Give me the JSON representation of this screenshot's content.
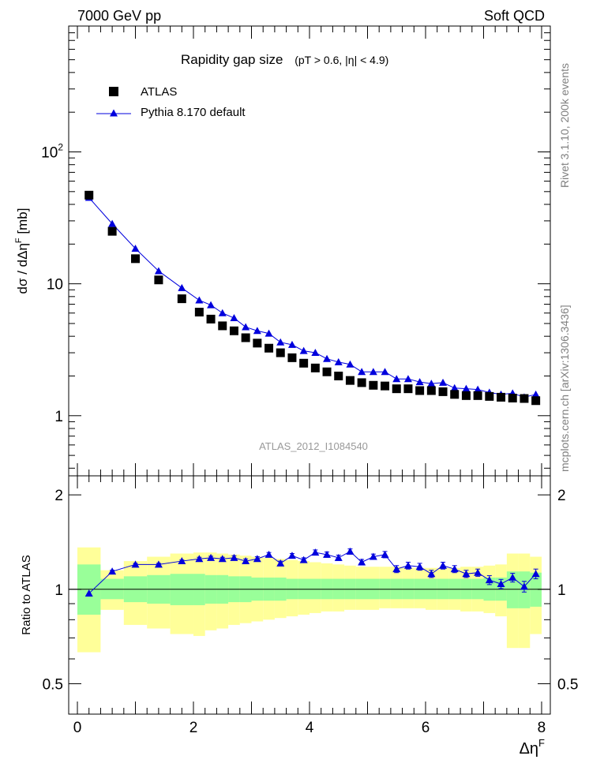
{
  "header": {
    "energy_label": "7000 GeV pp",
    "category_label": "Soft QCD"
  },
  "side_labels": {
    "rivet": "Rivet 3.1.10,  200k events",
    "mcplots": "mcplots.cern.ch [arXiv:1306.3436]"
  },
  "chart_data": [
    {
      "type": "scatter",
      "scale": "log",
      "title": "Rapidity gap size",
      "subtitle": "(pT > 0.6, |η| < 4.9)",
      "ylabel": "dσ / dΔη^F [mb]",
      "xlabel": "Δη^F",
      "xlim": [
        -0.15,
        8.15
      ],
      "ylim": [
        0.35,
        900
      ],
      "yticks": [
        {
          "value": 100,
          "label": "10",
          "sup": "2"
        },
        {
          "value": 10,
          "label": "10",
          "sup": ""
        },
        {
          "value": 1,
          "label": "1",
          "sup": ""
        }
      ],
      "analysis_label": "ATLAS_2012_I1084540",
      "legend": [
        "ATLAS",
        "Pythia 8.170 default"
      ],
      "x": [
        0.2,
        0.6,
        1.0,
        1.4,
        1.8,
        2.1,
        2.3,
        2.5,
        2.7,
        2.9,
        3.1,
        3.3,
        3.5,
        3.7,
        3.9,
        4.1,
        4.3,
        4.5,
        4.7,
        4.9,
        5.1,
        5.3,
        5.5,
        5.7,
        5.9,
        6.1,
        6.3,
        6.5,
        6.7,
        6.9,
        7.1,
        7.3,
        7.5,
        7.7,
        7.9
      ],
      "series": [
        {
          "name": "ATLAS",
          "values": [
            47,
            25,
            15.5,
            10.7,
            7.7,
            6.1,
            5.4,
            4.8,
            4.4,
            3.9,
            3.55,
            3.25,
            3.0,
            2.75,
            2.5,
            2.3,
            2.15,
            2.0,
            1.85,
            1.78,
            1.7,
            1.68,
            1.6,
            1.6,
            1.55,
            1.55,
            1.52,
            1.45,
            1.42,
            1.42,
            1.4,
            1.38,
            1.36,
            1.35,
            1.3
          ]
        },
        {
          "name": "Pythia 8.170 default",
          "values": [
            45,
            28.5,
            18.5,
            12.5,
            9.3,
            7.5,
            6.9,
            6.0,
            5.5,
            4.7,
            4.4,
            4.2,
            3.6,
            3.45,
            3.1,
            3.0,
            2.7,
            2.55,
            2.45,
            2.15,
            2.15,
            2.15,
            1.9,
            1.9,
            1.8,
            1.75,
            1.78,
            1.62,
            1.6,
            1.58,
            1.5,
            1.45,
            1.48,
            1.38,
            1.45
          ]
        }
      ]
    },
    {
      "type": "line",
      "ylabel": "Ratio to ATLAS",
      "xlabel": "Δη^F",
      "xlim": [
        -0.15,
        8.15
      ],
      "ylim": [
        0.4,
        2.3
      ],
      "yticks": [
        0.5,
        1,
        2
      ],
      "ytick_labels": [
        "0.5",
        "1",
        "2"
      ],
      "xticks": [
        0,
        2,
        4,
        6,
        8
      ],
      "xtick_labels": [
        "0",
        "2",
        "4",
        "6",
        "8"
      ],
      "bin_edges": [
        0,
        0.4,
        0.8,
        1.2,
        1.6,
        2.0,
        2.2,
        2.4,
        2.6,
        2.8,
        3.0,
        3.2,
        3.4,
        3.6,
        3.8,
        4.0,
        4.2,
        4.4,
        4.6,
        4.8,
        5.0,
        5.2,
        5.4,
        5.6,
        5.8,
        6.0,
        6.2,
        6.4,
        6.6,
        6.8,
        7.0,
        7.2,
        7.4,
        7.6,
        7.8,
        8.0
      ],
      "band_outer": {
        "name": "total uncertainty",
        "color": "#ffff99",
        "lo": [
          0.63,
          0.86,
          0.77,
          0.75,
          0.72,
          0.71,
          0.74,
          0.75,
          0.77,
          0.78,
          0.79,
          0.8,
          0.81,
          0.82,
          0.83,
          0.84,
          0.85,
          0.85,
          0.86,
          0.86,
          0.86,
          0.87,
          0.87,
          0.87,
          0.87,
          0.86,
          0.86,
          0.86,
          0.85,
          0.85,
          0.84,
          0.82,
          0.65,
          0.65,
          0.72
        ],
        "hi": [
          1.36,
          1.15,
          1.23,
          1.27,
          1.3,
          1.31,
          1.31,
          1.3,
          1.29,
          1.28,
          1.27,
          1.26,
          1.25,
          1.24,
          1.23,
          1.22,
          1.21,
          1.2,
          1.19,
          1.18,
          1.18,
          1.18,
          1.18,
          1.17,
          1.17,
          1.17,
          1.17,
          1.17,
          1.18,
          1.18,
          1.19,
          1.2,
          1.3,
          1.3,
          1.27
        ]
      },
      "band_inner": {
        "name": "statistical uncertainty",
        "color": "#99ff99",
        "lo": [
          0.83,
          0.93,
          0.91,
          0.9,
          0.89,
          0.89,
          0.9,
          0.9,
          0.91,
          0.91,
          0.92,
          0.92,
          0.92,
          0.93,
          0.93,
          0.93,
          0.93,
          0.93,
          0.93,
          0.93,
          0.93,
          0.93,
          0.93,
          0.93,
          0.93,
          0.93,
          0.93,
          0.93,
          0.93,
          0.93,
          0.92,
          0.92,
          0.87,
          0.87,
          0.88
        ],
        "hi": [
          1.2,
          1.08,
          1.1,
          1.11,
          1.12,
          1.12,
          1.11,
          1.11,
          1.1,
          1.1,
          1.09,
          1.09,
          1.09,
          1.08,
          1.08,
          1.08,
          1.08,
          1.08,
          1.08,
          1.08,
          1.08,
          1.08,
          1.08,
          1.08,
          1.08,
          1.08,
          1.08,
          1.08,
          1.08,
          1.08,
          1.09,
          1.09,
          1.14,
          1.14,
          1.13
        ]
      },
      "x": [
        0.2,
        0.6,
        1.0,
        1.4,
        1.8,
        2.1,
        2.3,
        2.5,
        2.7,
        2.9,
        3.1,
        3.3,
        3.5,
        3.7,
        3.9,
        4.1,
        4.3,
        4.5,
        4.7,
        4.9,
        5.1,
        5.3,
        5.5,
        5.7,
        5.9,
        6.1,
        6.3,
        6.5,
        6.7,
        6.9,
        7.1,
        7.3,
        7.5,
        7.7,
        7.9
      ],
      "series": [
        {
          "name": "Pythia 8.170 default",
          "values": [
            0.97,
            1.14,
            1.2,
            1.2,
            1.23,
            1.25,
            1.26,
            1.25,
            1.26,
            1.23,
            1.25,
            1.29,
            1.21,
            1.28,
            1.24,
            1.31,
            1.29,
            1.26,
            1.32,
            1.22,
            1.27,
            1.29,
            1.16,
            1.19,
            1.18,
            1.12,
            1.19,
            1.16,
            1.12,
            1.13,
            1.07,
            1.04,
            1.09,
            1.02,
            1.12
          ]
        }
      ],
      "errors": [
        0.0,
        0.01,
        0.01,
        0.01,
        0.01,
        0.015,
        0.015,
        0.015,
        0.02,
        0.02,
        0.02,
        0.02,
        0.02,
        0.02,
        0.02,
        0.025,
        0.025,
        0.025,
        0.025,
        0.025,
        0.025,
        0.03,
        0.03,
        0.03,
        0.03,
        0.03,
        0.03,
        0.03,
        0.03,
        0.03,
        0.035,
        0.035,
        0.035,
        0.04,
        0.04
      ]
    }
  ],
  "colors": {
    "data": "#000000",
    "mc": "#0000dd",
    "band_outer": "#ffff99",
    "band_inner": "#99ff99",
    "analysis_label": "#999999",
    "side_label": "#7f7f7f"
  }
}
